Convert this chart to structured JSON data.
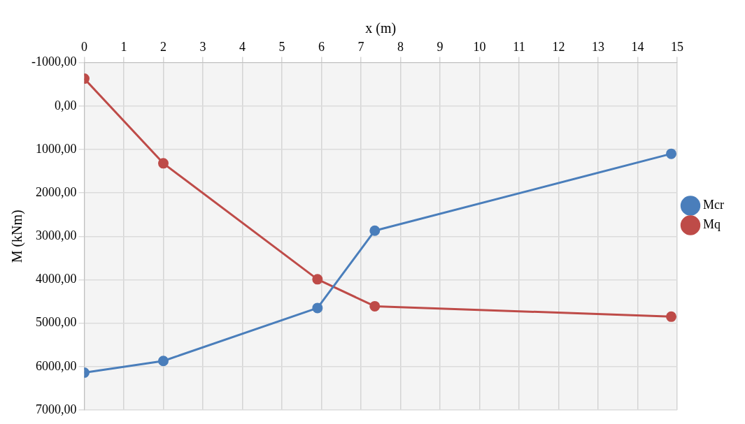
{
  "chart_data": {
    "type": "line",
    "xlabel": "x (m)",
    "ylabel": "M (kNm)",
    "xlim": [
      0,
      15
    ],
    "xticks": [
      0,
      1,
      2,
      3,
      4,
      5,
      6,
      7,
      8,
      9,
      10,
      11,
      12,
      13,
      14,
      15
    ],
    "ylim": [
      7000,
      -1000
    ],
    "yticks": [
      {
        "value": -1000,
        "label": "-1000,00"
      },
      {
        "value": 0,
        "label": "0,00"
      },
      {
        "value": 1000,
        "label": "1000,00"
      },
      {
        "value": 2000,
        "label": "2000,00"
      },
      {
        "value": 3000,
        "label": "3000,00"
      },
      {
        "value": 4000,
        "label": "4000,00"
      },
      {
        "value": 5000,
        "label": "5000,00"
      },
      {
        "value": 6000,
        "label": "6000,00"
      },
      {
        "value": 7000,
        "label": "7000,00"
      }
    ],
    "series": [
      {
        "name": "Mcr",
        "color": "#4a7ebb",
        "x": [
          0,
          2,
          5.9,
          7.35,
          14.85
        ],
        "values": [
          6140,
          5870,
          4650,
          2870,
          1100
        ]
      },
      {
        "name": "Mq",
        "color": "#be4b48",
        "x": [
          0,
          2,
          5.9,
          7.35,
          14.85
        ],
        "values": [
          -630,
          1320,
          3990,
          4610,
          4850
        ]
      }
    ],
    "grid": true,
    "legend": "right",
    "marker": "circle",
    "line_style": "solid"
  }
}
